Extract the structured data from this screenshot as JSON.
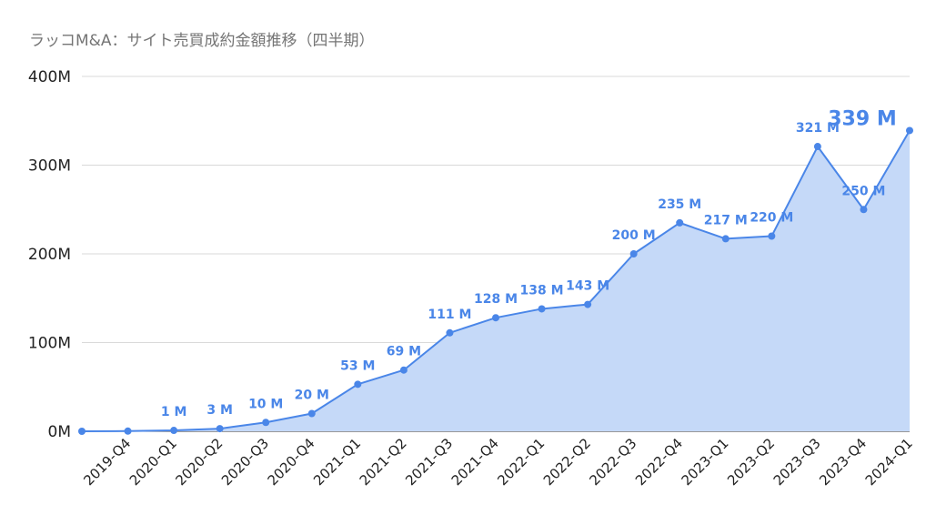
{
  "chart_data": {
    "type": "area",
    "title": "ラッコM&A：サイト売買成約金額推移（四半期）",
    "xlabel": "",
    "ylabel": "",
    "ylim": [
      0,
      400
    ],
    "yticks": [
      "0M",
      "100M",
      "200M",
      "300M",
      "400M"
    ],
    "ytick_values": [
      0,
      100,
      200,
      300,
      400
    ],
    "grid": true,
    "legend": "none",
    "categories": [
      "2019-Q4",
      "2020-Q1",
      "2020-Q2",
      "2020-Q3",
      "2020-Q4",
      "2021-Q1",
      "2021-Q2",
      "2021-Q3",
      "2021-Q4",
      "2022-Q1",
      "2022-Q2",
      "2022-Q3",
      "2022-Q4",
      "2023-Q1",
      "2023-Q2",
      "2023-Q3",
      "2023-Q4",
      "2024-Q1"
    ],
    "x": [
      "",
      "2019-Q4",
      "2020-Q1",
      "2020-Q2",
      "2020-Q3",
      "2020-Q4",
      "2021-Q1",
      "2021-Q2",
      "2021-Q3",
      "2021-Q4",
      "2022-Q1",
      "2022-Q2",
      "2022-Q3",
      "2022-Q4",
      "2023-Q1",
      "2023-Q2",
      "2023-Q3",
      "2023-Q4",
      "2024-Q1"
    ],
    "values": [
      0,
      0.2,
      1,
      3,
      10,
      20,
      53,
      69,
      111,
      128,
      138,
      143,
      200,
      235,
      217,
      220,
      321,
      250,
      339
    ],
    "data_labels": [
      "",
      "",
      "1 M",
      "3 M",
      "10 M",
      "20 M",
      "53 M",
      "69 M",
      "111 M",
      "128 M",
      "138 M",
      "143 M",
      "200 M",
      "235 M",
      "217 M",
      "220 M",
      "321 M",
      "250 M",
      "339 M"
    ],
    "colors": {
      "line": "#4a86e8",
      "fill": "#c5d9f8",
      "grid": "#d9d9d9",
      "label": "#4a86e8"
    }
  }
}
